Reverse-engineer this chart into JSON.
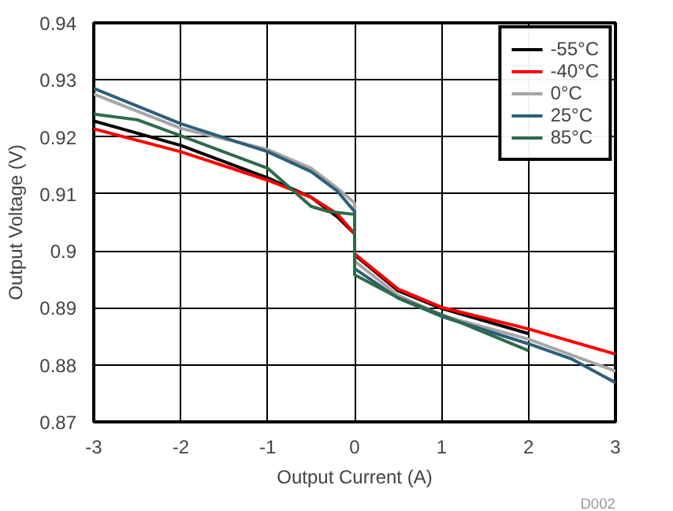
{
  "chart_data": {
    "type": "line",
    "xlabel": "Output Current (A)",
    "ylabel": "Output Voltage (V)",
    "xlim": [
      -3,
      3
    ],
    "xticks": [
      -3,
      -2,
      -1,
      0,
      1,
      2,
      3
    ],
    "ylim": [
      0.87,
      0.94
    ],
    "yticks": [
      0.87,
      0.88,
      0.89,
      {
        "value": 0.9,
        "label": "0.9"
      },
      0.91,
      0.92,
      0.93,
      0.94
    ],
    "grid": true,
    "legend": "top right",
    "line_style": "solid",
    "marker": "none",
    "annotations": [
      "D002"
    ],
    "series": [
      {
        "name": "-55°C",
        "color": "#000000",
        "x": [
          -3,
          -2,
          -1,
          -0.5,
          -0.2,
          0,
          0,
          0.5,
          1,
          2
        ],
        "values": [
          0.9228,
          0.9185,
          0.9128,
          0.9094,
          0.906,
          0.903,
          0.8993,
          0.893,
          0.8899,
          0.8855
        ]
      },
      {
        "name": "-40°C",
        "color": "#ff0000",
        "x": [
          -3,
          -2,
          -1,
          -0.5,
          -0.2,
          0,
          0,
          0.5,
          1,
          2,
          3
        ],
        "values": [
          0.9214,
          0.9174,
          0.9124,
          0.9094,
          0.9065,
          0.903,
          0.8995,
          0.8933,
          0.8901,
          0.8863,
          0.8819
        ]
      },
      {
        "name": "0°C",
        "color": "#a6a6a6",
        "x": [
          -3,
          -2,
          -1,
          -0.5,
          -0.2,
          0,
          0,
          0.5,
          1,
          2,
          3
        ],
        "values": [
          0.9275,
          0.9215,
          0.9178,
          0.9145,
          0.911,
          0.9084,
          0.8982,
          0.8922,
          0.8887,
          0.8845,
          0.8789
        ]
      },
      {
        "name": "25°C",
        "color": "#2e5f78",
        "x": [
          -3,
          -2,
          -1,
          -0.5,
          -0.2,
          0,
          0,
          0.5,
          1,
          2,
          2.5,
          3
        ],
        "values": [
          0.9285,
          0.9223,
          0.9174,
          0.9139,
          0.9105,
          0.9069,
          0.8969,
          0.8917,
          0.8885,
          0.8837,
          0.881,
          0.8769
        ]
      },
      {
        "name": "85°C",
        "color": "#2e6b4a",
        "x": [
          -3,
          -2.5,
          -2,
          -1,
          -0.5,
          -0.3,
          0,
          0,
          0.5,
          1,
          2
        ],
        "values": [
          0.924,
          0.923,
          0.9202,
          0.9145,
          0.9078,
          0.9069,
          0.9064,
          0.8958,
          0.8918,
          0.8888,
          0.8825
        ]
      }
    ]
  }
}
